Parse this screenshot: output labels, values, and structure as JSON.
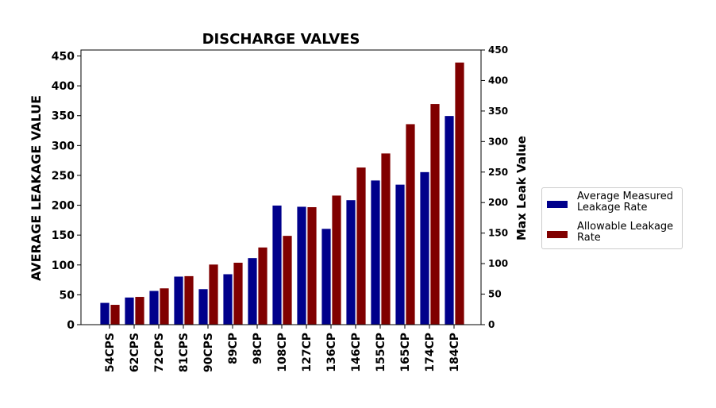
{
  "chart_data": {
    "type": "bar",
    "title": "DISCHARGE VALVES",
    "ylabel": "AVERAGE LEAKAGE VALUE",
    "y2label": "Max Leak Value",
    "xlabel": "",
    "ylim": [
      0,
      460
    ],
    "y2lim": [
      0,
      450
    ],
    "yticks": [
      0,
      50,
      100,
      150,
      200,
      250,
      300,
      350,
      400,
      450
    ],
    "y2ticks": [
      0,
      50,
      100,
      150,
      200,
      250,
      300,
      350,
      400,
      450
    ],
    "categories": [
      "54CPS",
      "62CPS",
      "72CPS",
      "81CPS",
      "90CPS",
      "89CP",
      "98CP",
      "108CP",
      "127CP",
      "136CP",
      "146CP",
      "155CP",
      "165CP",
      "174CP",
      "184CP"
    ],
    "series": [
      {
        "name": "Average Measured Leakage Rate",
        "axis": "left",
        "color": "#00008b",
        "values": [
          37,
          46,
          57,
          81,
          60,
          85,
          112,
          200,
          198,
          161,
          209,
          242,
          235,
          256,
          350
        ]
      },
      {
        "name": "Allowable Leakage Rate",
        "axis": "right",
        "color": "#800000",
        "values": [
          33,
          46,
          60,
          80,
          99,
          102,
          127,
          146,
          193,
          212,
          258,
          281,
          329,
          362,
          430
        ]
      }
    ],
    "legend_position": "right"
  }
}
